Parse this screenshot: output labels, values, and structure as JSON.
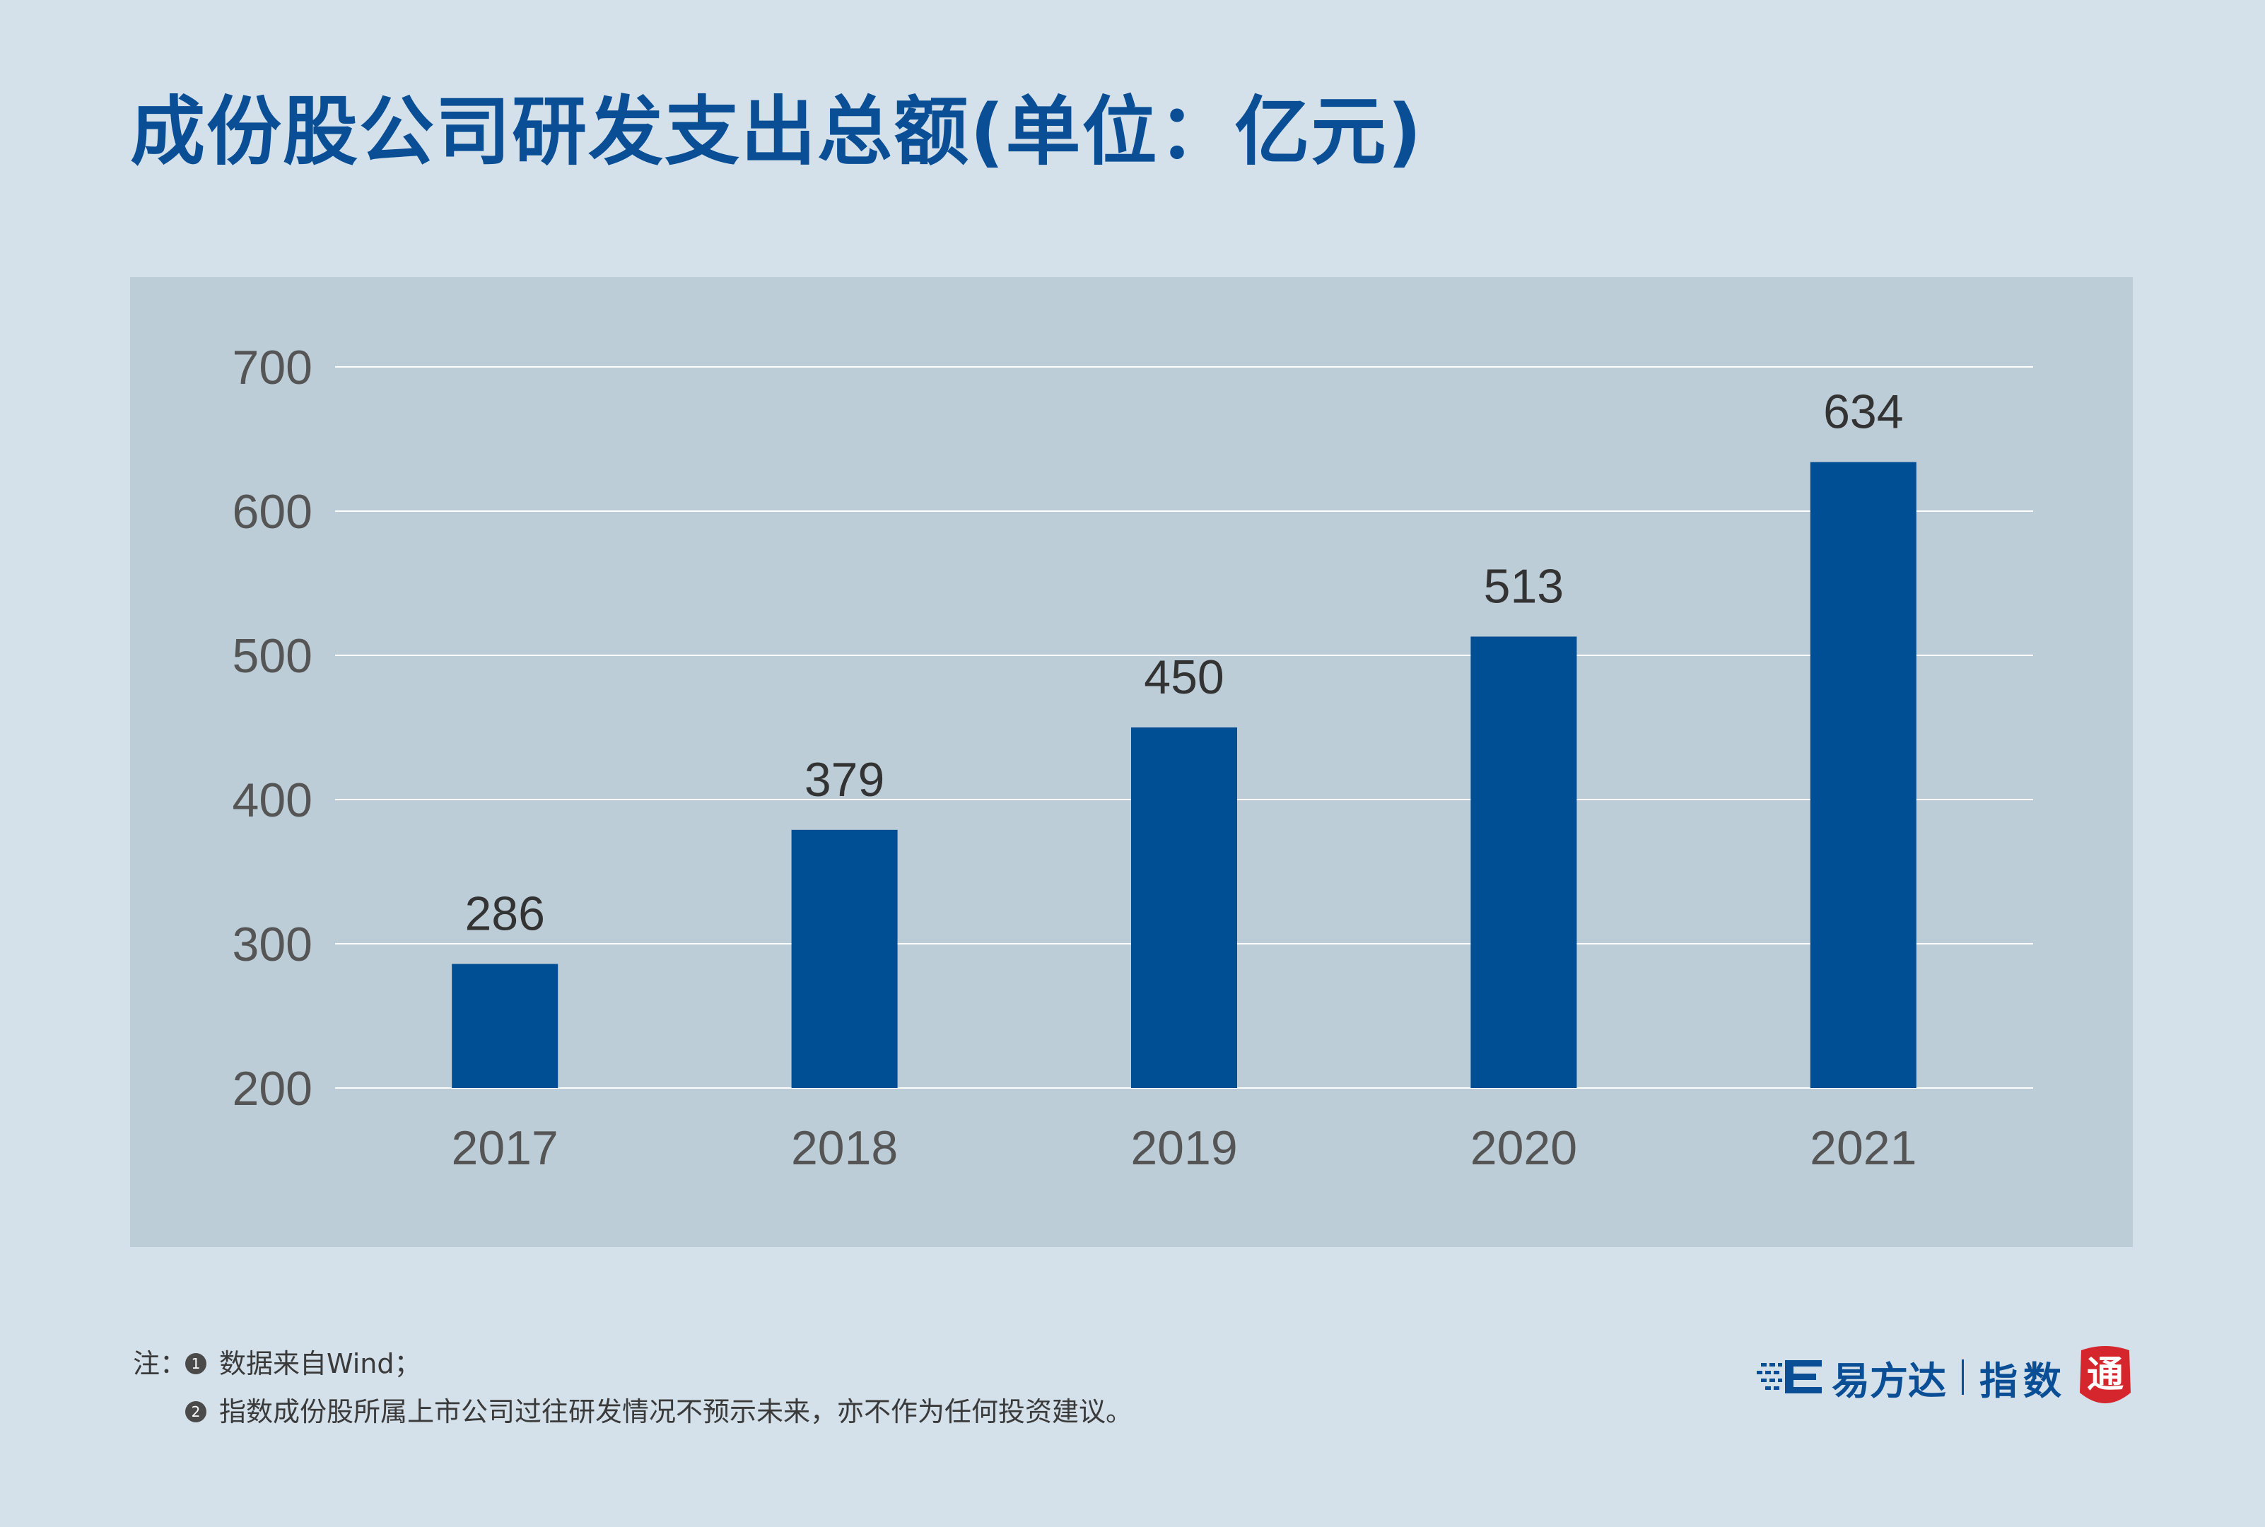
{
  "title": "成份股公司研发支出总额(单位：亿元)",
  "colors": {
    "background": "#d4e1ea",
    "panel": "#bccdd8",
    "bar": "#004e94",
    "title": "#0a4f96",
    "gridline": "#ffffff",
    "tick_text": "#555555",
    "value_text": "#333333"
  },
  "chart_data": {
    "type": "bar",
    "categories": [
      "2017",
      "2018",
      "2019",
      "2020",
      "2021"
    ],
    "values": [
      286,
      379,
      450,
      513,
      634
    ],
    "data_labels": [
      "286",
      "379",
      "450",
      "513",
      "634"
    ],
    "ylim": [
      200,
      700
    ],
    "yticks": [
      200,
      300,
      400,
      500,
      600,
      700
    ],
    "ytick_labels": [
      "200",
      "300",
      "400",
      "500",
      "600",
      "700"
    ],
    "grid": true,
    "xlabel": "",
    "ylabel": ""
  },
  "notes": {
    "prefix": "注：",
    "items": [
      {
        "num": "1",
        "text": "数据来自Wind；"
      },
      {
        "num": "2",
        "text": "指数成份股所属上市公司过往研发情况不预示未来，亦不作为任何投资建议。"
      }
    ]
  },
  "brand": {
    "name": "易方达",
    "sub": "指数",
    "seal_char": "通",
    "icon": "efunds-e-logo-icon",
    "seal_icon": "seal-stamp-icon"
  }
}
